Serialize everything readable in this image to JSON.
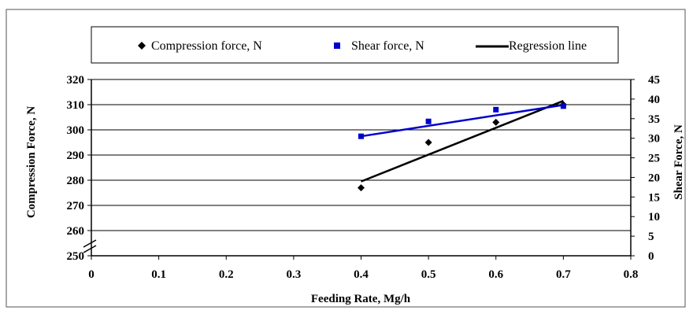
{
  "chart_data": {
    "type": "scatter",
    "x": [
      0.4,
      0.5,
      0.6,
      0.7
    ],
    "xlabel": "Feeding Rate, Mg/h",
    "ylabel": "Compression Force, N",
    "y2label": "Shear Force, N",
    "xlim": [
      0,
      0.8
    ],
    "ylim": [
      250,
      320
    ],
    "y2lim": [
      0,
      45
    ],
    "x_ticks": [
      "0",
      "0.1",
      "0.2",
      "0.3",
      "0.4",
      "0.5",
      "0.6",
      "0.7",
      "0.8"
    ],
    "y_ticks": [
      "250",
      "260",
      "270",
      "280",
      "290",
      "300",
      "310",
      "320"
    ],
    "y2_ticks": [
      "0",
      "5",
      "10",
      "15",
      "20",
      "25",
      "30",
      "35",
      "40",
      "45"
    ],
    "grid": true,
    "legend_position": "top",
    "series": [
      {
        "name": "Compression force, N",
        "axis": "left",
        "marker": "diamond",
        "color": "#000000",
        "values": [
          277,
          295,
          303,
          310
        ]
      },
      {
        "name": "Shear force, N",
        "axis": "right",
        "marker": "square",
        "color": "#0000cc",
        "values": [
          30.5,
          34.3,
          37.3,
          38.2
        ]
      }
    ],
    "regression": {
      "name": "Regression line",
      "compression_line": {
        "x": [
          0.4,
          0.7
        ],
        "y": [
          279.5,
          311.5
        ],
        "color": "#000000"
      },
      "shear_line": {
        "x": [
          0.4,
          0.7
        ],
        "y": [
          30.5,
          38.5
        ],
        "color": "#0000cc"
      }
    }
  }
}
